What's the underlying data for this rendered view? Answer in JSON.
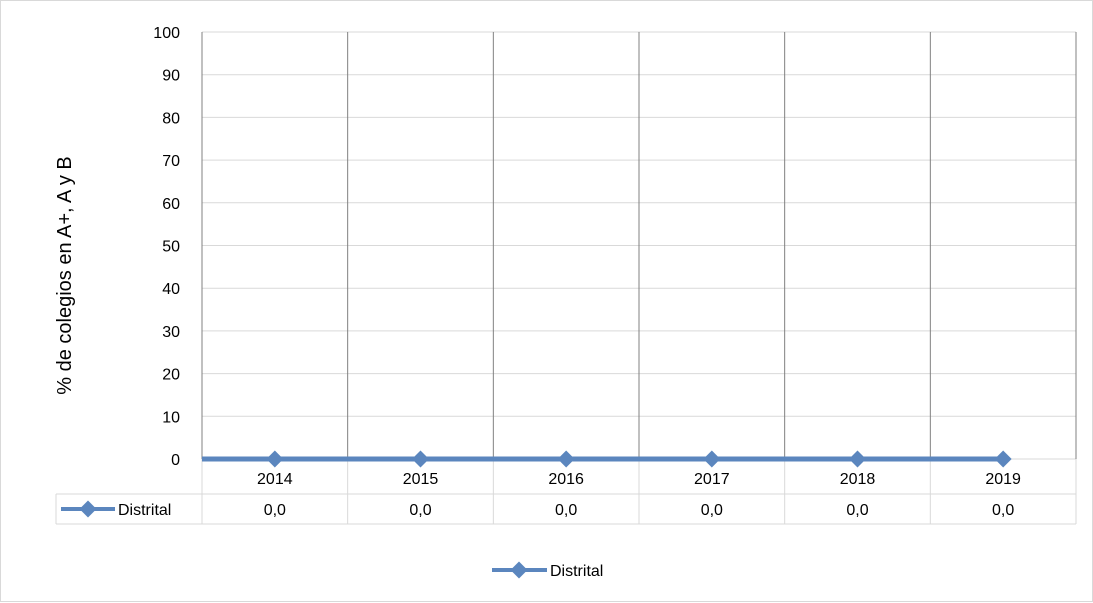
{
  "chart_data": {
    "type": "line",
    "title": "",
    "xlabel": "",
    "ylabel": "% de colegios en A+, A y B",
    "ylim": [
      0,
      100
    ],
    "yticks": [
      "0",
      "10",
      "20",
      "30",
      "40",
      "50",
      "60",
      "70",
      "80",
      "90",
      "100"
    ],
    "categories": [
      "2014",
      "2015",
      "2016",
      "2017",
      "2018",
      "2019"
    ],
    "series": [
      {
        "name": "Distrital",
        "values": [
          0,
          0,
          0,
          0,
          0,
          0
        ],
        "labels": [
          "0,0",
          "0,0",
          "0,0",
          "0,0",
          "0,0",
          "0,0"
        ]
      }
    ],
    "colors": {
      "series": "#5b86be",
      "grid": "#808080",
      "table_border": "#d9d9d9"
    },
    "legend": {
      "position": "bottom",
      "entries": [
        "Distrital"
      ]
    },
    "data_table": true,
    "grid": true
  }
}
